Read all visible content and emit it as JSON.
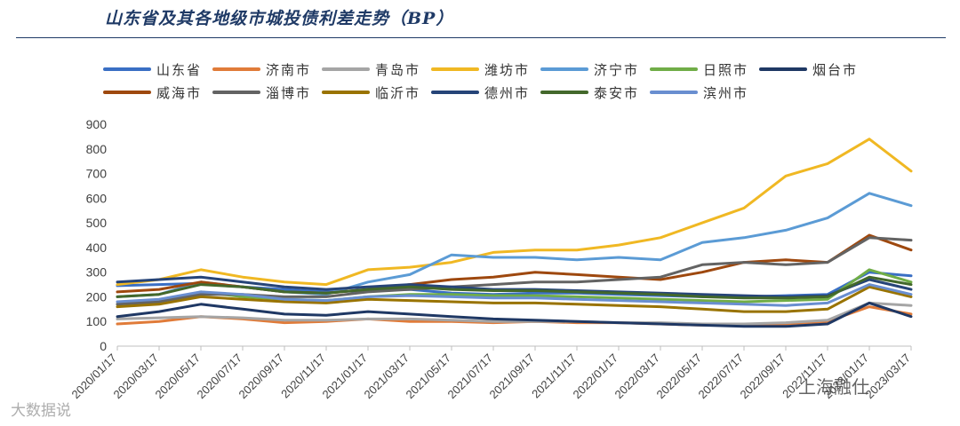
{
  "page": {
    "title": "山东省及其各地级市城投债利差走势（BP）"
  },
  "watermarks": {
    "left": "大数据说",
    "right": "上海融仕"
  },
  "chart_data": {
    "type": "line",
    "title": "山东省及其各地级市城投债利差走势（BP）",
    "xlabel": "",
    "ylabel": "",
    "ylim": [
      0,
      900
    ],
    "yticks": [
      0,
      100,
      200,
      300,
      400,
      500,
      600,
      700,
      800,
      900
    ],
    "x": [
      "2020/01/17",
      "2020/03/17",
      "2020/05/17",
      "2020/07/17",
      "2020/09/17",
      "2020/11/17",
      "2021/01/17",
      "2021/03/17",
      "2021/05/17",
      "2021/07/17",
      "2021/09/17",
      "2021/11/17",
      "2022/01/17",
      "2022/03/17",
      "2022/05/17",
      "2022/07/17",
      "2022/09/17",
      "2022/11/17",
      "2023/01/17",
      "2023/03/17"
    ],
    "xtick_labels": [
      "2020/01/17",
      "2020/03/17",
      "2020/05/17",
      "2020/07/17",
      "2020/09/17",
      "2020/11/17",
      "2021/01/17",
      "2021/03/17",
      "2021/05/17",
      "2021/07/17",
      "2021/09/17",
      "2021/11/17",
      "2022/01/17",
      "2022/03/17",
      "2022/05/17",
      "2022/07/17",
      "2022/09/17",
      "2022/11/17",
      "2023/01/17",
      "2023/03/17"
    ],
    "grid": false,
    "legend_position": "top",
    "series": [
      {
        "name": "山东省",
        "color": "#3a6fc4",
        "values": [
          245,
          250,
          255,
          240,
          230,
          220,
          225,
          230,
          215,
          210,
          215,
          215,
          210,
          205,
          200,
          200,
          205,
          210,
          300,
          285
        ]
      },
      {
        "name": "济南市",
        "color": "#e07b39",
        "values": [
          90,
          100,
          120,
          110,
          95,
          100,
          110,
          100,
          100,
          95,
          100,
          95,
          95,
          90,
          85,
          85,
          90,
          100,
          160,
          130
        ]
      },
      {
        "name": "青岛市",
        "color": "#a5a5a5",
        "values": [
          110,
          115,
          120,
          115,
          105,
          105,
          110,
          110,
          105,
          100,
          100,
          100,
          95,
          95,
          90,
          90,
          95,
          105,
          175,
          165
        ]
      },
      {
        "name": "潍坊市",
        "color": "#f0b823",
        "values": [
          250,
          270,
          310,
          280,
          260,
          250,
          310,
          320,
          340,
          380,
          390,
          390,
          410,
          440,
          500,
          560,
          690,
          740,
          840,
          710
        ]
      },
      {
        "name": "济宁市",
        "color": "#5b9bd5",
        "values": [
          200,
          210,
          260,
          240,
          220,
          210,
          260,
          290,
          370,
          360,
          360,
          350,
          360,
          350,
          420,
          440,
          470,
          520,
          620,
          570
        ]
      },
      {
        "name": "日照市",
        "color": "#70ad47",
        "values": [
          170,
          180,
          220,
          200,
          190,
          185,
          200,
          210,
          210,
          205,
          205,
          200,
          195,
          190,
          185,
          180,
          185,
          190,
          310,
          260
        ]
      },
      {
        "name": "烟台市",
        "color": "#1f3864",
        "values": [
          120,
          140,
          170,
          150,
          130,
          125,
          140,
          130,
          120,
          110,
          105,
          100,
          95,
          90,
          85,
          80,
          80,
          90,
          175,
          120
        ]
      },
      {
        "name": "威海市",
        "color": "#9e480e",
        "values": [
          220,
          230,
          260,
          240,
          220,
          215,
          230,
          250,
          270,
          280,
          300,
          290,
          280,
          270,
          300,
          340,
          350,
          340,
          450,
          390
        ]
      },
      {
        "name": "淄博市",
        "color": "#636363",
        "values": [
          170,
          180,
          210,
          210,
          200,
          200,
          220,
          230,
          240,
          250,
          260,
          260,
          270,
          280,
          330,
          340,
          330,
          340,
          440,
          430
        ]
      },
      {
        "name": "临沂市",
        "color": "#997300",
        "values": [
          160,
          170,
          200,
          190,
          180,
          175,
          190,
          185,
          180,
          175,
          175,
          170,
          165,
          160,
          150,
          140,
          140,
          150,
          240,
          200
        ]
      },
      {
        "name": "德州市",
        "color": "#264478",
        "values": [
          260,
          270,
          280,
          260,
          240,
          230,
          240,
          250,
          240,
          230,
          230,
          225,
          220,
          215,
          210,
          205,
          200,
          205,
          270,
          230
        ]
      },
      {
        "name": "泰安市",
        "color": "#43682b",
        "values": [
          200,
          210,
          250,
          240,
          220,
          215,
          230,
          240,
          230,
          225,
          225,
          220,
          215,
          210,
          200,
          195,
          195,
          200,
          280,
          250
        ]
      },
      {
        "name": "滨州市",
        "color": "#698ed0",
        "values": [
          180,
          190,
          220,
          210,
          190,
          185,
          200,
          205,
          200,
          195,
          195,
          190,
          185,
          180,
          175,
          170,
          165,
          175,
          250,
          210
        ]
      }
    ]
  }
}
